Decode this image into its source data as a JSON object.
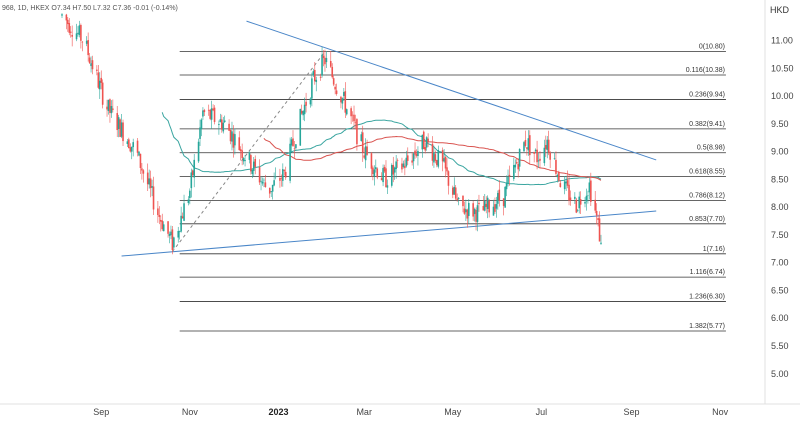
{
  "header": {
    "text": "968, 1D, HKEX  O7.34  H7.50  L7.32  C7.36  -0.01 (-0.14%)"
  },
  "chart_data": {
    "type": "candlestick",
    "currency_label": "HKD",
    "y_range": [
      4.6,
      11.55
    ],
    "x_range": [
      "2022-08-05",
      "2023-11-25"
    ],
    "y_ticks": [
      "11.00",
      "10.50",
      "10.00",
      "9.50",
      "9.00",
      "8.50",
      "8.00",
      "7.50",
      "7.00",
      "6.50",
      "6.00",
      "5.50",
      "5.00"
    ],
    "x_ticks": [
      {
        "label": "Sep",
        "date": "2022-09-01"
      },
      {
        "label": "Nov",
        "date": "2022-11-01"
      },
      {
        "label": "2023",
        "date": "2023-01-01"
      },
      {
        "label": "Mar",
        "date": "2023-03-01"
      },
      {
        "label": "May",
        "date": "2023-05-01"
      },
      {
        "label": "Jul",
        "date": "2023-07-01"
      },
      {
        "label": "Sep",
        "date": "2023-09-01"
      },
      {
        "label": "Nov",
        "date": "2023-11-01"
      }
    ],
    "fib_levels": [
      {
        "label": "0(10.80)",
        "value": 10.8
      },
      {
        "label": "0.116(10.38)",
        "value": 10.38
      },
      {
        "label": "0.236(9.94)",
        "value": 9.94
      },
      {
        "label": "0.382(9.41)",
        "value": 9.41
      },
      {
        "label": "0.5(8.98)",
        "value": 8.98
      },
      {
        "label": "0.618(8.55)",
        "value": 8.55
      },
      {
        "label": "0.786(8.12)",
        "value": 8.12
      },
      {
        "label": "0.853(7.70)",
        "value": 7.7
      },
      {
        "label": "1(7.16)",
        "value": 7.16
      },
      {
        "label": "1.116(6.74)",
        "value": 6.74
      },
      {
        "label": "1.236(6.30)",
        "value": 6.3
      },
      {
        "label": "1.382(5.77)",
        "value": 5.77
      }
    ],
    "fib_start": "2022-10-25",
    "fib_end": "2023-11-05",
    "trendlines": [
      {
        "name": "upper",
        "from": [
          "2022-12-10",
          11.35
        ],
        "to": [
          "2023-09-18",
          8.85
        ]
      },
      {
        "name": "lower",
        "from": [
          "2022-09-15",
          7.12
        ],
        "to": [
          "2023-09-18",
          7.93
        ]
      },
      {
        "name": "swing",
        "from": [
          "2022-10-20",
          7.2
        ],
        "to": [
          "2023-02-02",
          10.8
        ]
      }
    ],
    "anchors": [
      [
        "2022-08-05",
        11.45
      ],
      [
        "2022-08-20",
        11.0
      ],
      [
        "2022-09-05",
        9.8
      ],
      [
        "2022-09-25",
        9.0
      ],
      [
        "2022-10-10",
        7.9
      ],
      [
        "2022-10-20",
        7.35
      ],
      [
        "2022-11-01",
        8.3
      ],
      [
        "2022-11-10",
        9.7
      ],
      [
        "2022-11-25",
        9.5
      ],
      [
        "2022-12-10",
        8.9
      ],
      [
        "2022-12-25",
        8.3
      ],
      [
        "2023-01-05",
        8.6
      ],
      [
        "2023-01-15",
        9.5
      ],
      [
        "2023-01-25",
        10.3
      ],
      [
        "2023-02-02",
        10.65
      ],
      [
        "2023-02-15",
        9.9
      ],
      [
        "2023-03-01",
        9.0
      ],
      [
        "2023-03-15",
        8.5
      ],
      [
        "2023-03-30",
        8.8
      ],
      [
        "2023-04-12",
        9.2
      ],
      [
        "2023-04-25",
        8.7
      ],
      [
        "2023-05-05",
        8.0
      ],
      [
        "2023-05-20",
        7.9
      ],
      [
        "2023-06-05",
        8.2
      ],
      [
        "2023-06-20",
        9.2
      ],
      [
        "2023-06-28",
        8.9
      ],
      [
        "2023-07-05",
        9.2
      ],
      [
        "2023-07-15",
        8.4
      ],
      [
        "2023-07-25",
        8.05
      ],
      [
        "2023-08-03",
        8.4
      ],
      [
        "2023-08-08",
        7.8
      ],
      [
        "2023-08-11",
        7.36
      ]
    ],
    "last_candle": {
      "open": 7.34,
      "high": 7.5,
      "low": 7.32,
      "close": 7.36
    },
    "moving_averages": [
      {
        "period": 50,
        "color": "#3aa5a0"
      },
      {
        "period": 100,
        "color": "#d9534f"
      }
    ],
    "colors": {
      "up": "#26a69a",
      "down": "#ef5350",
      "trendline": "#4a86c8",
      "swing": "#888888",
      "fib": "#333333"
    }
  }
}
